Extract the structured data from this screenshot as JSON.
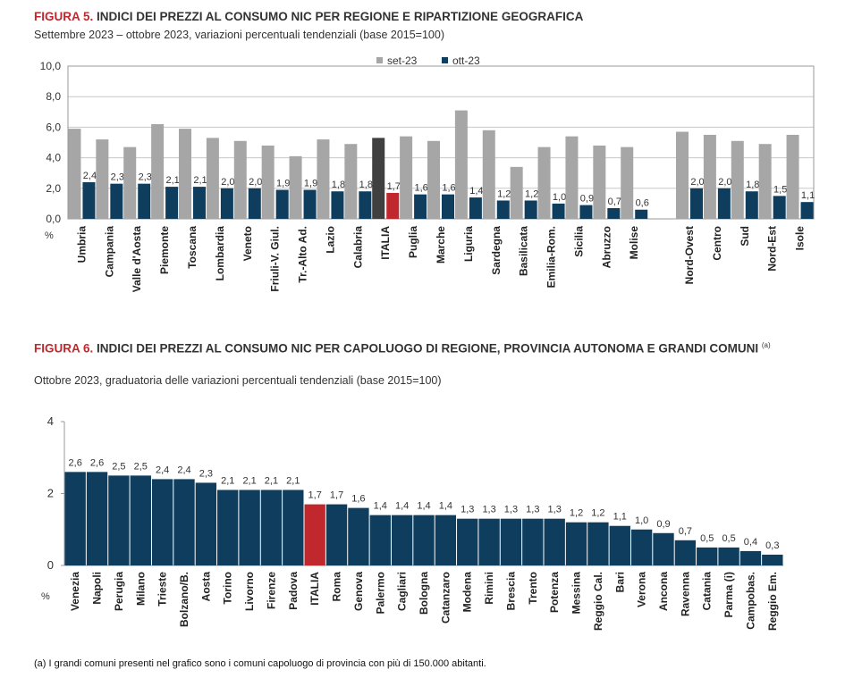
{
  "figure5": {
    "number": "FIGURA 5.",
    "title": "INDICI DEI PREZZI AL CONSUMO NIC PER REGIONE E RIPARTIZIONE GEOGRAFICA",
    "subtitle": "Settembre 2023 – ottobre 2023, variazioni percentuali tendenziali (base 2015=100)"
  },
  "figure6": {
    "number": "FIGURA 6.",
    "title": "INDICI DEI PREZZI AL CONSUMO NIC PER CAPOLUOGO DI REGIONE, PROVINCIA AUTONOMA E GRANDI COMUNI",
    "note_mark": "(a)",
    "subtitle": "Ottobre 2023, graduatoria delle variazioni percentuali tendenziali (base 2015=100)"
  },
  "footnote": "(a)  I grandi comuni presenti nel grafico sono i comuni capoluogo di provincia con più di 150.000 abitanti.",
  "colors": {
    "set23": "#a6a6a6",
    "ott23": "#0e3d5e",
    "italia_set23": "#404040",
    "italia_ott23": "#c0282d",
    "title_red": "#c0282d"
  },
  "chart_data": [
    {
      "type": "bar",
      "ylabel": "%",
      "ylim": [
        0,
        10
      ],
      "yticks": [
        "0,0",
        "2,0",
        "4,0",
        "6,0",
        "8,0",
        "10,0"
      ],
      "grid": true,
      "legend": "top-center",
      "highlight": "ITALIA",
      "categories": [
        "Umbria",
        "Campania",
        "Valle d'Aosta",
        "Piemonte",
        "Toscana",
        "Lombardia",
        "Veneto",
        "Friuli-V. Giul.",
        "Tr.-Alto Ad.",
        "Lazio",
        "Calabria",
        "ITALIA",
        "Puglia",
        "Marche",
        "Liguria",
        "Sardegna",
        "Basilicata",
        "Emilia-Rom.",
        "Sicilia",
        "Abruzzo",
        "Molise",
        "",
        "Nord-Ovest",
        "Centro",
        "Sud",
        "Nord-Est",
        "Isole"
      ],
      "series": [
        {
          "name": "set-23",
          "values": [
            5.9,
            5.2,
            4.7,
            6.2,
            5.9,
            5.3,
            5.1,
            4.8,
            4.1,
            5.2,
            4.9,
            5.3,
            5.4,
            5.1,
            7.1,
            5.8,
            3.4,
            4.7,
            5.4,
            4.8,
            4.7,
            null,
            5.7,
            5.5,
            5.1,
            4.9,
            5.5
          ]
        },
        {
          "name": "ott-23",
          "values": [
            2.4,
            2.3,
            2.3,
            2.1,
            2.1,
            2.0,
            2.0,
            1.9,
            1.9,
            1.8,
            1.8,
            1.7,
            1.6,
            1.6,
            1.4,
            1.2,
            1.2,
            1.0,
            0.9,
            0.7,
            0.6,
            null,
            2.0,
            2.0,
            1.8,
            1.5,
            1.1
          ],
          "labels": [
            "2,4",
            "2,3",
            "2,3",
            "2,1",
            "2,1",
            "2,0",
            "2,0",
            "1,9",
            "1,9",
            "1,8",
            "1,8",
            "1,7",
            "1,6",
            "1,6",
            "1,4",
            "1,2",
            "1,2",
            "1,0",
            "0,9",
            "0,7",
            "0,6",
            "",
            "2,0",
            "2,0",
            "1,8",
            "1,5",
            "1,1"
          ]
        }
      ]
    },
    {
      "type": "bar",
      "ylabel": "%",
      "ylim": [
        0,
        4
      ],
      "yticks": [
        "0",
        "2",
        "4"
      ],
      "grid": false,
      "highlight": "ITALIA",
      "categories": [
        "Venezia",
        "Napoli",
        "Perugia",
        "Milano",
        "Trieste",
        "Bolzano/B.",
        "Aosta",
        "Torino",
        "Livorno",
        "Firenze",
        "Padova",
        "ITALIA",
        "Roma",
        "Genova",
        "Palermo",
        "Cagliari",
        "Bologna",
        "Catanzaro",
        "Modena",
        "Rimini",
        "Brescia",
        "Trento",
        "Potenza",
        "Messina",
        "Reggio Cal.",
        "Bari",
        "Verona",
        "Ancona",
        "Ravenna",
        "Catania",
        "Parma (i)",
        "Campobas.",
        "Reggio Em."
      ],
      "values": [
        2.6,
        2.6,
        2.5,
        2.5,
        2.4,
        2.4,
        2.3,
        2.1,
        2.1,
        2.1,
        2.1,
        1.7,
        1.7,
        1.6,
        1.4,
        1.4,
        1.4,
        1.4,
        1.3,
        1.3,
        1.3,
        1.3,
        1.3,
        1.2,
        1.2,
        1.1,
        1.0,
        0.9,
        0.7,
        0.5,
        0.5,
        0.4,
        0.3
      ],
      "labels": [
        "2,6",
        "2,6",
        "2,5",
        "2,5",
        "2,4",
        "2,4",
        "2,3",
        "2,1",
        "2,1",
        "2,1",
        "2,1",
        "1,7",
        "1,7",
        "1,6",
        "1,4",
        "1,4",
        "1,4",
        "1,4",
        "1,3",
        "1,3",
        "1,3",
        "1,3",
        "1,3",
        "1,2",
        "1,2",
        "1,1",
        "1,0",
        "0,9",
        "0,7",
        "0,5",
        "0,5",
        "0,4",
        "0,3"
      ]
    }
  ]
}
